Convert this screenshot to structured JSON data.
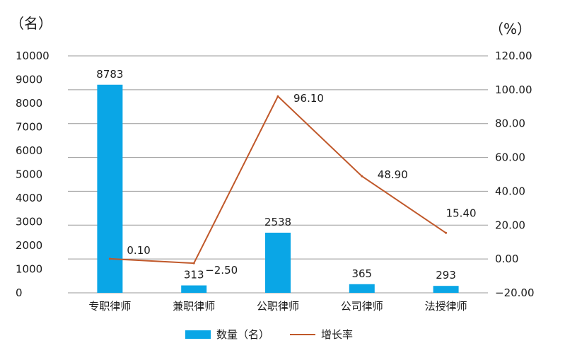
{
  "chart_data": {
    "type": "bar+line",
    "categories": [
      "专职律师",
      "兼职律师",
      "公职律师",
      "公司律师",
      "法授律师"
    ],
    "left_unit": "（名）",
    "right_unit": "（%）",
    "bar_series": {
      "name": "数量（名）",
      "values": [
        8783,
        313,
        2538,
        365,
        293
      ],
      "labels": [
        "8783",
        "313",
        "2538",
        "365",
        "293"
      ],
      "color": "#0aa6e6"
    },
    "line_series": {
      "name": "增长率",
      "values": [
        0.1,
        -2.5,
        96.1,
        48.9,
        15.4
      ],
      "labels": [
        "0.10",
        "−2.50",
        "96.10",
        "48.90",
        "15.40"
      ],
      "color": "#c0582a"
    },
    "left_axis": {
      "ylim": [
        0,
        10000
      ],
      "ticks": [
        0,
        1000,
        2000,
        3000,
        4000,
        5000,
        6000,
        7000,
        8000,
        9000,
        10000
      ],
      "tick_labels": [
        "0",
        "1000",
        "2000",
        "3000",
        "4000",
        "5000",
        "6000",
        "7000",
        "8000",
        "9000",
        "10000"
      ]
    },
    "right_axis": {
      "ylim": [
        -20,
        120
      ],
      "ticks": [
        -20,
        0,
        20,
        40,
        60,
        80,
        100,
        120
      ],
      "tick_labels": [
        "−20.00",
        "0.00",
        "20.00",
        "40.00",
        "60.00",
        "80.00",
        "100.00",
        "120.00"
      ]
    },
    "grid": true,
    "gridline_color": "#999999",
    "legend_position": "bottom"
  }
}
